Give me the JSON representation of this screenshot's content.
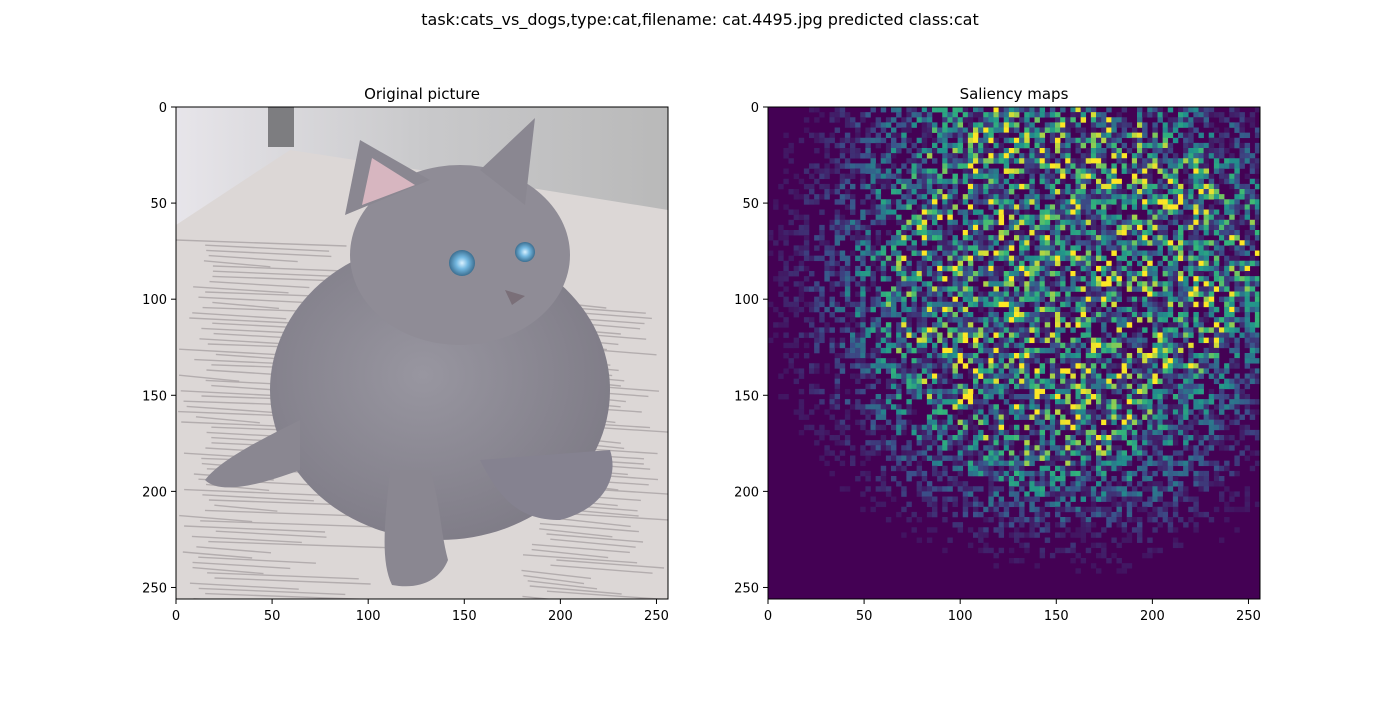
{
  "figure": {
    "suptitle": "task:cats_vs_dogs,type:cat,filename: cat.4495.jpg predicted class:cat"
  },
  "chart_data": [
    {
      "type": "image",
      "title": "Original picture",
      "xlim": [
        0,
        256
      ],
      "ylim": [
        256,
        0
      ],
      "xticks": [
        0,
        50,
        100,
        150,
        200,
        250
      ],
      "yticks": [
        0,
        50,
        100,
        150,
        200,
        250
      ],
      "xtick_labels": [
        "0",
        "50",
        "100",
        "150",
        "200",
        "250"
      ],
      "ytick_labels": [
        "0",
        "50",
        "100",
        "150",
        "200",
        "250"
      ],
      "content": "photo",
      "colors": {
        "background": "#c9c9c9",
        "newspaper": "#dcd7d6",
        "cat_fur": "#8a8791",
        "eyes": "#74b8e0"
      }
    },
    {
      "type": "heatmap",
      "title": "Saliency maps",
      "xlim": [
        0,
        256
      ],
      "ylim": [
        256,
        0
      ],
      "xticks": [
        0,
        50,
        100,
        150,
        200,
        250
      ],
      "yticks": [
        0,
        50,
        100,
        150,
        200,
        250
      ],
      "xtick_labels": [
        "0",
        "50",
        "100",
        "150",
        "200",
        "250"
      ],
      "ytick_labels": [
        "0",
        "50",
        "100",
        "150",
        "200",
        "250"
      ],
      "colormap": "viridis",
      "colors": {
        "low": "#440154",
        "mid": "#31688e",
        "high": "#35b779",
        "max": "#fde725"
      }
    }
  ]
}
